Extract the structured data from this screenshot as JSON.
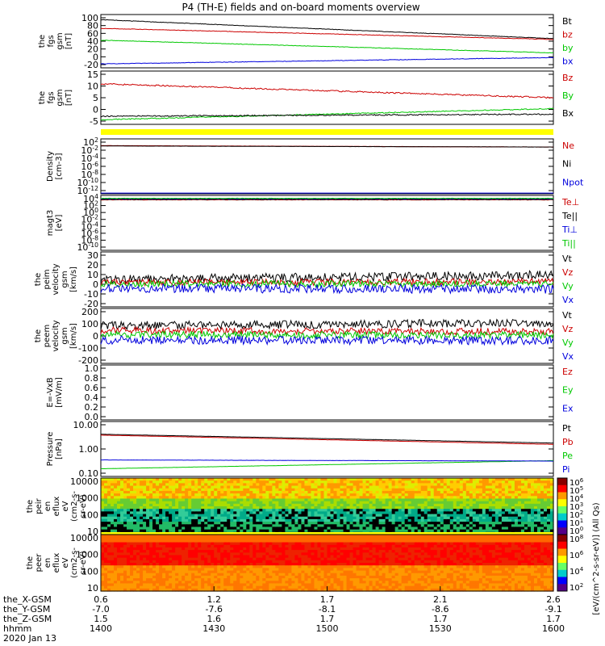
{
  "title": "P4 (TH-E) fields and on-board moments overview",
  "colors": {
    "black": "#000000",
    "red": "#cc0000",
    "green": "#00c800",
    "blue": "#0000dd",
    "yellow": "#ffff00",
    "orange": "#ff8800"
  },
  "chart_data": [
    {
      "id": "fgs_mag",
      "type": "line",
      "ylabel": [
        "the",
        "fgs",
        "gsm",
        "[nT]"
      ],
      "ytick_labels": [
        "100",
        "80",
        "60",
        "40",
        "20",
        "0",
        "-20"
      ],
      "ylim": [
        -30,
        105
      ],
      "series": [
        {
          "name": "Bt",
          "color": "black",
          "start": 92,
          "end": 44,
          "noise": 0.6
        },
        {
          "name": "bz",
          "color": "red",
          "start": 70,
          "end": 42,
          "noise": 0.6
        },
        {
          "name": "by",
          "color": "green",
          "start": 40,
          "end": 8,
          "noise": 0.6
        },
        {
          "name": "bx",
          "color": "blue",
          "start": -20,
          "end": -4,
          "noise": 0.6
        }
      ]
    },
    {
      "id": "fgs_dsl",
      "type": "line",
      "ylabel": [
        "the",
        "fgs",
        "gsm",
        "[nT]"
      ],
      "ytick_labels": [
        "15",
        "10",
        "5",
        "0",
        "-5"
      ],
      "ylim": [
        -7,
        16
      ],
      "series": [
        {
          "name": "Bz",
          "color": "red",
          "start": 10.5,
          "end": 4.5,
          "noise": 0.3
        },
        {
          "name": "By",
          "color": "green",
          "start": -5,
          "end": -0.2,
          "noise": 0.2
        },
        {
          "name": "Bx",
          "color": "black",
          "start": -3.5,
          "end": -2.6,
          "noise": 0.25
        }
      ]
    },
    {
      "id": "density",
      "type": "line",
      "ylabel": [
        "Density",
        "[cm-3]"
      ],
      "ytick_labels": [
        "10^2",
        "10^-2",
        "10^-4",
        "10^-6",
        "10^-8",
        "10^-10",
        "10^-12"
      ],
      "log": true,
      "ylim": [
        -13,
        2.5
      ],
      "series": [
        {
          "name": "Ne",
          "color": "red",
          "start": 0.6,
          "end": 0.2,
          "noise": 0.02
        },
        {
          "name": "Ni",
          "color": "black",
          "start": 0.5,
          "end": 0.2,
          "noise": 0.02
        },
        {
          "name": "Npot",
          "color": "blue",
          "start": -12.8,
          "end": -12.8,
          "noise": 0
        }
      ]
    },
    {
      "id": "temperature",
      "type": "line",
      "ylabel": [
        "magt3",
        "[eV]"
      ],
      "ytick_labels": [
        "10^4",
        "10^2",
        "10^0",
        "10^-2",
        "10^-4",
        "10^-6",
        "10^-8",
        "10^-10"
      ],
      "log": true,
      "ylim": [
        -10.5,
        4.5
      ],
      "series": [
        {
          "name": "Te⊥",
          "color": "red",
          "start": 3.3,
          "end": 3.3,
          "noise": 0.05
        },
        {
          "name": "Te||",
          "color": "black",
          "start": 3.4,
          "end": 3.4,
          "noise": 0.05
        },
        {
          "name": "Ti⊥",
          "color": "blue",
          "start": 3.6,
          "end": 3.6,
          "noise": 0.05
        },
        {
          "name": "Ti||",
          "color": "green",
          "start": 3.7,
          "end": 3.7,
          "noise": 0.05
        }
      ]
    },
    {
      "id": "peim_velocity",
      "type": "line",
      "ylabel": [
        "the",
        "peim",
        "velocity",
        "gsm",
        "[km/s]"
      ],
      "ytick_labels": [
        "30",
        "20",
        "10",
        "0",
        "-10",
        "-20"
      ],
      "ylim": [
        -20,
        30
      ],
      "series": [
        {
          "name": "Vt",
          "color": "black",
          "start": 5,
          "end": 9,
          "noise": 4
        },
        {
          "name": "Vz",
          "color": "red",
          "start": 2,
          "end": 3,
          "noise": 3
        },
        {
          "name": "Vy",
          "color": "green",
          "start": 1,
          "end": 1,
          "noise": 3
        },
        {
          "name": "Vx",
          "color": "blue",
          "start": -3,
          "end": -4,
          "noise": 4
        }
      ]
    },
    {
      "id": "peem_velocity",
      "type": "line",
      "ylabel": [
        "the",
        "peem",
        "velocity",
        "gsm",
        "[km/s]"
      ],
      "ytick_labels": [
        "200",
        "100",
        "0",
        "-100",
        "-200"
      ],
      "ylim": [
        -200,
        200
      ],
      "series": [
        {
          "name": "Vt",
          "color": "black",
          "start": 75,
          "end": 95,
          "noise": 30
        },
        {
          "name": "Vz",
          "color": "red",
          "start": 40,
          "end": 30,
          "noise": 25
        },
        {
          "name": "Vy",
          "color": "green",
          "start": 10,
          "end": 5,
          "noise": 25
        },
        {
          "name": "Vx",
          "color": "blue",
          "start": -30,
          "end": -35,
          "noise": 30
        }
      ]
    },
    {
      "id": "efield",
      "type": "line",
      "ylabel": [
        "E=-VxB",
        "[mV/m]"
      ],
      "ytick_labels": [
        "1.0",
        "0.8",
        "0.6",
        "0.4",
        "0.2",
        "0.0"
      ],
      "ylim": [
        0,
        1
      ],
      "series": [
        {
          "name": "Ez",
          "color": "red"
        },
        {
          "name": "Ey",
          "color": "green"
        },
        {
          "name": "Ex",
          "color": "blue"
        }
      ]
    },
    {
      "id": "pressure",
      "type": "line",
      "ylabel": [
        "Pressure",
        "[nPa]"
      ],
      "ytick_labels": [
        "10.00",
        "1.00",
        "0.10"
      ],
      "log": true,
      "ylim": [
        -1.4,
        1.1
      ],
      "series": [
        {
          "name": "Pt",
          "color": "black",
          "start": 0.52,
          "end": 0.12,
          "noise": 0.004
        },
        {
          "name": "Pb",
          "color": "red",
          "start": 0.48,
          "end": 0.06,
          "noise": 0.004
        },
        {
          "name": "Pe",
          "color": "green",
          "start": -1.05,
          "end": -0.68,
          "noise": 0.004
        },
        {
          "name": "Pi",
          "color": "blue",
          "start": -0.65,
          "end": -0.7,
          "noise": 0.004
        }
      ]
    },
    {
      "id": "peir_spectrogram",
      "type": "heatmap",
      "ylabel": [
        "the",
        "peir",
        "en",
        "eflux",
        "eV",
        "(cm2-s-",
        "sr-eV)"
      ],
      "ytick_labels": [
        "10000",
        "1000",
        "100",
        "10"
      ]
    },
    {
      "id": "peer_spectrogram",
      "type": "heatmap",
      "ylabel": [
        "the",
        "peer",
        "en",
        "eflux",
        "eV",
        "(cm2-s-",
        "sr-eV)"
      ],
      "ytick_labels": [
        "10000",
        "1000",
        "100",
        "10"
      ]
    }
  ],
  "colorbar": {
    "upper_ticks": [
      "10^6",
      "10^5",
      "10^4",
      "10^3",
      "10^2",
      "10^1",
      "10^0"
    ],
    "lower_ticks": [
      "10^8",
      "10^6",
      "10^4",
      "10^2"
    ],
    "label": "[eV/(cm^2-s-sr-eV)] (All Qs)"
  },
  "xaxis": {
    "row_labels": [
      "the_X-GSM",
      "the_Y-GSM",
      "the_Z-GSM",
      "hhmm"
    ],
    "date": "2020 Jan 13",
    "ticks": [
      {
        "x": "0.6",
        "y": "-7.0",
        "z": "1.5",
        "t": "1400"
      },
      {
        "x": "1.2",
        "y": "-7.6",
        "z": "1.6",
        "t": "1430"
      },
      {
        "x": "1.7",
        "y": "-8.1",
        "z": "1.7",
        "t": "1500"
      },
      {
        "x": "2.1",
        "y": "-8.6",
        "z": "1.7",
        "t": "1530"
      },
      {
        "x": "2.6",
        "y": "-9.1",
        "z": "1.7",
        "t": "1600"
      }
    ]
  }
}
